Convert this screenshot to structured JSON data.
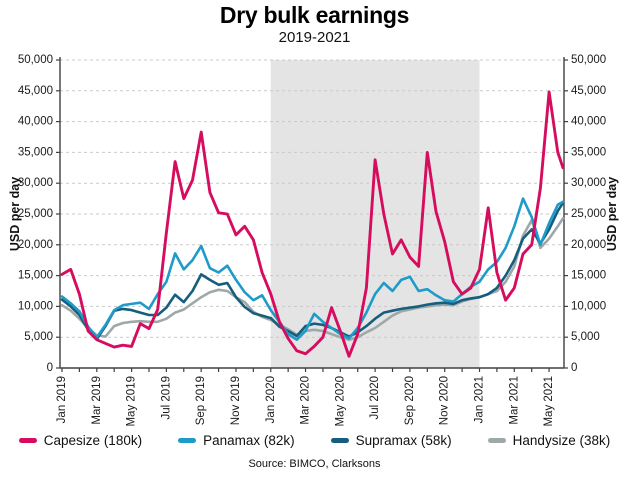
{
  "title": "Dry bulk earnings",
  "subtitle": "2019-2021",
  "source": "Source: BIMCO, Clarksons",
  "colors": {
    "capesize": "#D60D5E",
    "panamax": "#1F9BC9",
    "supramax": "#155E7D",
    "handysize": "#9FA8A8",
    "shaded_region": "#E4E4E4",
    "gridline": "#C9C9C9",
    "axis": "#404040",
    "tick_text": "#1a1a1a"
  },
  "y_axis": {
    "title_left": "USD per day",
    "title_right": "USD per day",
    "min": 0,
    "max": 50000,
    "step": 5000,
    "tick_labels": [
      "0",
      "5,000",
      "10,000",
      "15,000",
      "20,000",
      "25,000",
      "30,000",
      "35,000",
      "40,000",
      "45,000",
      "50,000"
    ]
  },
  "x_axis": {
    "tick_labels": [
      "Jan 2019",
      "Mar 2019",
      "May 2019",
      "Jul 2019",
      "Sep 2019",
      "Nov 2019",
      "Jan 2020",
      "Mar 2020",
      "May 2020",
      "Jul 2020",
      "Sep 2020",
      "Nov 2020",
      "Jan 2021",
      "Mar 2021",
      "May 2021"
    ],
    "label_every_months": 2,
    "minor_tick_every_months": 1
  },
  "chart_data": {
    "type": "line",
    "title": "Dry bulk earnings",
    "subtitle": "2019-2021",
    "xlabel": "",
    "ylabel": "USD per day",
    "ylim": [
      0,
      50000
    ],
    "grid": "horizontal-dashed",
    "legend_position": "bottom",
    "x_unit": "months_since_jan_2019",
    "x": [
      0,
      0.5,
      1,
      1.5,
      2,
      2.5,
      3,
      3.5,
      4,
      4.5,
      5,
      5.5,
      6,
      6.5,
      7,
      7.5,
      8,
      8.5,
      9,
      9.5,
      10,
      10.5,
      11,
      11.5,
      12,
      12.5,
      13,
      13.5,
      14,
      14.5,
      15,
      15.5,
      16,
      16.5,
      17,
      17.5,
      18,
      18.5,
      19,
      19.5,
      20,
      20.5,
      21,
      21.5,
      22,
      22.5,
      23,
      23.5,
      24,
      24.5,
      25,
      25.5,
      26,
      26.5,
      27,
      27.5,
      28,
      28.5,
      28.8
    ],
    "shaded_region": {
      "from_month": 12,
      "to_month": 24,
      "label": "2020",
      "color": "#E4E4E4"
    },
    "series": [
      {
        "name": "Capesize (180k)",
        "color": "#D60D5E",
        "values": [
          15200,
          16000,
          12000,
          6000,
          4600,
          4000,
          3400,
          3700,
          3500,
          7200,
          6400,
          9500,
          22000,
          33500,
          27500,
          30500,
          38300,
          28500,
          25200,
          25000,
          21600,
          23000,
          20800,
          15500,
          12000,
          7500,
          4800,
          2800,
          2300,
          3500,
          5000,
          9800,
          6000,
          1900,
          5500,
          13000,
          33800,
          25000,
          18500,
          20800,
          18000,
          16500,
          35000,
          25400,
          20500,
          14000,
          12000,
          13000,
          16000,
          26000,
          15500,
          11000,
          13000,
          18500,
          20000,
          29200,
          44800,
          35000,
          32500
        ]
      },
      {
        "name": "Panamax (82k)",
        "color": "#1F9BC9",
        "values": [
          11600,
          10500,
          9200,
          6700,
          5000,
          7000,
          9400,
          10200,
          10400,
          10600,
          9600,
          12000,
          14000,
          18600,
          16000,
          17500,
          19800,
          16200,
          15500,
          16600,
          14300,
          12300,
          11000,
          11800,
          9400,
          7500,
          5500,
          4600,
          6000,
          8800,
          7500,
          6500,
          5500,
          4800,
          6500,
          9000,
          12000,
          13800,
          12500,
          14300,
          14800,
          12500,
          12800,
          11800,
          11000,
          10800,
          12000,
          13200,
          14000,
          16000,
          17200,
          19500,
          23000,
          27500,
          24500,
          20000,
          23500,
          26500,
          27000
        ]
      },
      {
        "name": "Supramax (58k)",
        "color": "#155E7D",
        "values": [
          11100,
          10000,
          8600,
          6200,
          4700,
          6800,
          9300,
          9600,
          9400,
          9000,
          8600,
          8600,
          9800,
          11900,
          10700,
          12500,
          15200,
          14300,
          13500,
          13800,
          11500,
          9900,
          8900,
          8500,
          8100,
          6700,
          6000,
          5200,
          6800,
          7200,
          7000,
          6500,
          5800,
          5100,
          5800,
          6800,
          8000,
          9000,
          9300,
          9600,
          9800,
          10000,
          10300,
          10500,
          10600,
          10400,
          11000,
          11300,
          11500,
          12000,
          13000,
          15000,
          17500,
          21000,
          22500,
          20200,
          22500,
          25500,
          26800
        ]
      },
      {
        "name": "Handysize (38k)",
        "color": "#9FA8A8",
        "values": [
          10200,
          9300,
          8000,
          6500,
          5300,
          5100,
          6800,
          7300,
          7500,
          7600,
          7500,
          7500,
          8000,
          9000,
          9500,
          10500,
          11500,
          12300,
          12700,
          12500,
          11500,
          10700,
          9100,
          8300,
          7800,
          7000,
          6300,
          5400,
          6000,
          6200,
          6000,
          5500,
          5000,
          4600,
          5000,
          5800,
          6500,
          7500,
          8500,
          9200,
          9500,
          9800,
          10000,
          10200,
          10300,
          10200,
          10800,
          11200,
          11500,
          12000,
          12500,
          14000,
          16500,
          21500,
          24000,
          19500,
          21000,
          23000,
          24300
        ]
      }
    ]
  }
}
